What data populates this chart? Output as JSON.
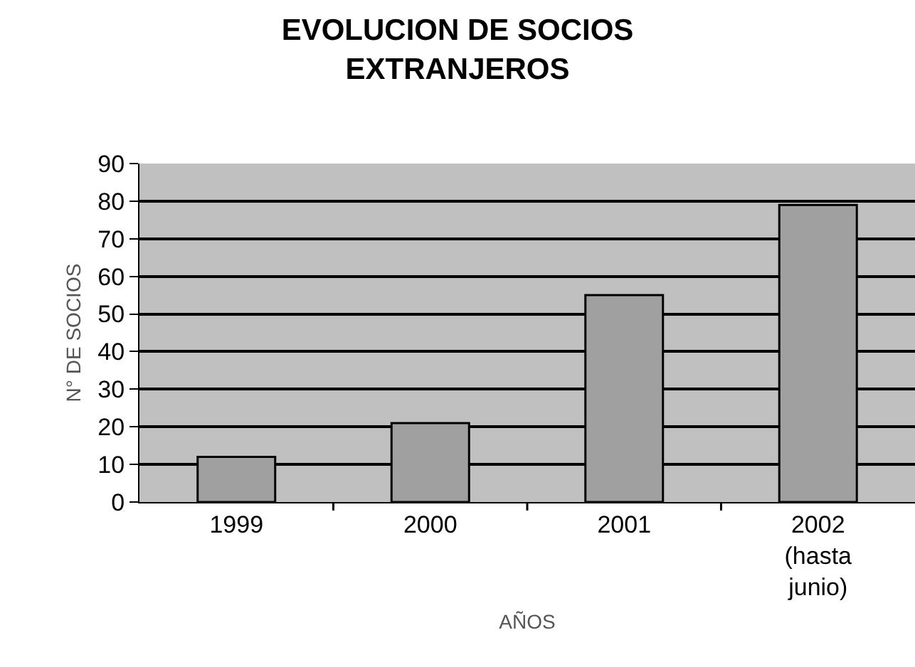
{
  "chart_data": {
    "type": "bar",
    "title": "EVOLUCION DE SOCIOS EXTRANJEROS",
    "xlabel": "AÑOS",
    "ylabel": "N° DE SOCIOS",
    "categories": [
      "1999",
      "2000",
      "2001",
      "2002 (hasta junio)"
    ],
    "values": [
      12,
      21,
      55,
      79
    ],
    "color": "#a0a0a0",
    "ylim": [
      0,
      90
    ],
    "yticks": [
      0,
      10,
      20,
      30,
      40,
      50,
      60,
      70,
      80,
      90
    ],
    "grid": "y"
  }
}
